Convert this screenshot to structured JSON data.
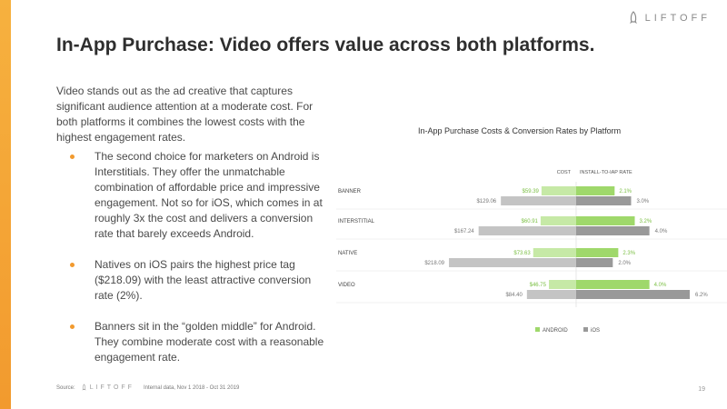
{
  "brand": {
    "name": "LIFTOFF"
  },
  "title": "In-App Purchase: Video offers value across both platforms.",
  "intro": "Video stands out as the ad creative that captures significant audience attention at a moderate cost. For both platforms it combines the lowest costs with the highest engagement rates.",
  "bullets": [
    "The second choice for marketers on Android is Interstitials. They offer the unmatchable combination of affordable price and impressive engagement. Not so for iOS, which comes in at roughly 3x the cost and delivers a conversion rate that barely exceeds Android.",
    "Natives on iOS pairs the highest price tag ($218.09) with the least attractive conversion rate (2%).",
    "Banners sit in the “golden middle” for Android. They combine moderate cost with a reasonable engagement rate."
  ],
  "footer": {
    "source_label": "Source:",
    "note": "Internal data, Nov 1 2018 - Oct 31 2019",
    "page_number": "19"
  },
  "colors": {
    "accent": "#f29a2e",
    "android": "#9fd86b",
    "android_light": "#c6e9a6",
    "ios_dark": "#999999",
    "ios_light": "#c4c4c4"
  },
  "chart_data": {
    "type": "bar",
    "title": "In-App Purchase Costs & Conversion Rates by Platform",
    "cost_header": "COST",
    "rate_header": "INSTALL-TO-IAP RATE",
    "categories": [
      "BANNER",
      "INTERSTITIAL",
      "NATIVE",
      "VIDEO"
    ],
    "series": [
      {
        "name": "ANDROID",
        "cost": [
          59.39,
          60.91,
          73.63,
          46.75
        ],
        "cost_labels": [
          "$59.39",
          "$60.91",
          "$73.63",
          "$46.75"
        ],
        "rate": [
          2.1,
          3.2,
          2.3,
          4.0
        ],
        "rate_labels": [
          "2.1%",
          "3.2%",
          "2.3%",
          "4.0%"
        ]
      },
      {
        "name": "iOS",
        "cost": [
          129.06,
          167.24,
          218.09,
          84.4
        ],
        "cost_labels": [
          "$129.06",
          "$167.24",
          "$218.09",
          "$84.40"
        ],
        "rate": [
          3.0,
          4.0,
          2.0,
          6.2
        ],
        "rate_labels": [
          "3.0%",
          "4.0%",
          "2.0%",
          "6.2%"
        ]
      }
    ],
    "legend": [
      "ANDROID",
      "iOS"
    ],
    "legend_position": "bottom-center"
  }
}
